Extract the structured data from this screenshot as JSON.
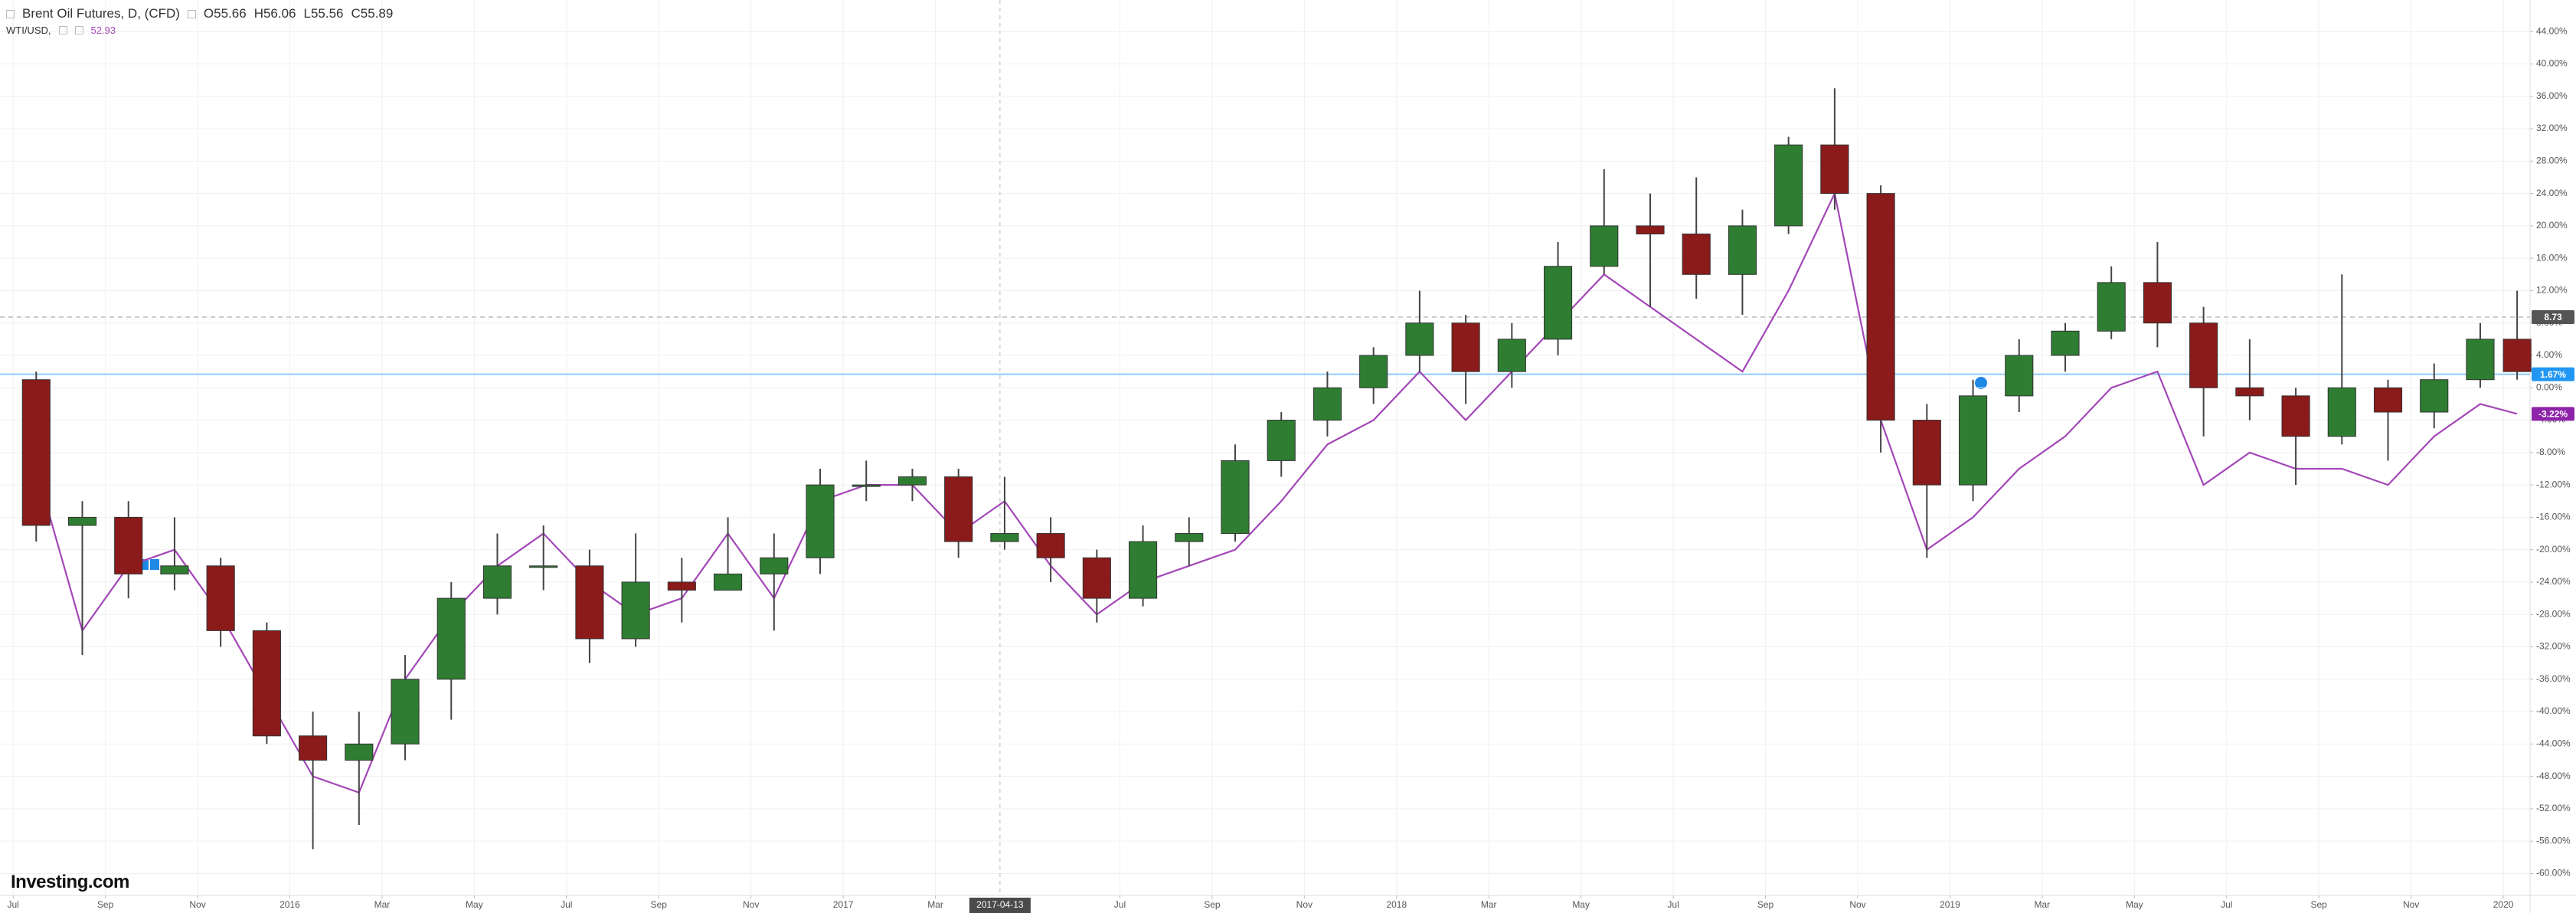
{
  "chart_data": {
    "type": "candlestick",
    "title": "Brent Oil Futures, D, (CFD)",
    "legend_values": [
      "O55.66",
      "H56.06",
      "L55.56",
      "C55.89"
    ],
    "compare_value": "52.93",
    "logo": "Investing.com",
    "up_color": "#2e7d32",
    "down_color": "#8b1a1a",
    "x": [
      0.5,
      1.5,
      2.5,
      3.5,
      4.5,
      5.5,
      6.5,
      7.5,
      8.5,
      9.5,
      10.5,
      11.5,
      12.5,
      13.5,
      14.5,
      15.5,
      16.5,
      17.5,
      18.5,
      19.5,
      20.5,
      21.5,
      22.5,
      23.5,
      24.5,
      25.5,
      26.5,
      27.5,
      28.5,
      29.5,
      30.5,
      31.5,
      32.5,
      33.5,
      34.5,
      35.5,
      36.5,
      37.5,
      38.5,
      39.5,
      40.5,
      41.5,
      42.5,
      43.5,
      44.5,
      45.5,
      46.5,
      47.5,
      48.5,
      49.5,
      50.5,
      51.5,
      52.5,
      53.5,
      54.3
    ],
    "open": [
      1,
      -17,
      -16,
      -23,
      -22,
      -30,
      -43,
      -46,
      -44,
      -36,
      -26,
      -22,
      -22,
      -31,
      -24,
      -25,
      -23,
      -21,
      -12,
      -12,
      -11,
      -19,
      -18,
      -21,
      -26,
      -19,
      -18,
      -9,
      -4,
      0,
      4,
      8,
      2,
      6,
      15,
      20,
      19,
      14,
      20,
      30,
      24,
      -4,
      -12,
      -1,
      4,
      7,
      13,
      8,
      0,
      -1,
      -6,
      0,
      -3,
      1,
      6
    ],
    "high": [
      2,
      -14,
      -14,
      -16,
      -21,
      -29,
      -40,
      -40,
      -33,
      -24,
      -18,
      -17,
      -20,
      -18,
      -21,
      -16,
      -18,
      -10,
      -9,
      -10,
      -10,
      -11,
      -16,
      -20,
      -17,
      -16,
      -7,
      -3,
      2,
      5,
      12,
      9,
      8,
      18,
      27,
      24,
      26,
      22,
      31,
      37,
      25,
      -2,
      1,
      6,
      8,
      15,
      18,
      10,
      6,
      0,
      14,
      1,
      3,
      8,
      12
    ],
    "low": [
      -19,
      -33,
      -26,
      -25,
      -32,
      -44,
      -57,
      -54,
      -46,
      -41,
      -28,
      -25,
      -34,
      -32,
      -29,
      -24,
      -30,
      -23,
      -14,
      -14,
      -21,
      -20,
      -24,
      -29,
      -27,
      -22,
      -19,
      -11,
      -6,
      -2,
      2,
      -2,
      0,
      4,
      14,
      10,
      11,
      9,
      19,
      22,
      -8,
      -21,
      -14,
      -3,
      2,
      6,
      5,
      -6,
      -4,
      -12,
      -7,
      -9,
      -5,
      0,
      1
    ],
    "close": [
      -17,
      -16,
      -23,
      -22,
      -30,
      -43,
      -46,
      -44,
      -36,
      -26,
      -22,
      -22,
      -31,
      -24,
      -25,
      -23,
      -21,
      -12,
      -12,
      -11,
      -19,
      -18,
      -21,
      -26,
      -19,
      -18,
      -9,
      -4,
      0,
      4,
      8,
      2,
      6,
      15,
      20,
      19,
      14,
      20,
      30,
      24,
      -4,
      -12,
      -1,
      4,
      7,
      13,
      8,
      0,
      -1,
      -6,
      0,
      -3,
      1,
      6,
      2
    ],
    "series": [
      {
        "name": "WTI/USD,",
        "color": "#a347b8",
        "values": [
          -10,
          -30,
          -22,
          -20,
          -28,
          -38,
          -48,
          -50,
          -36,
          -28,
          -22,
          -18,
          -24,
          -28,
          -26,
          -18,
          -26,
          -14,
          -12,
          -12,
          -18,
          -14,
          -22,
          -28,
          -24,
          -22,
          -20,
          -14,
          -7,
          -4,
          2,
          -4,
          2,
          8,
          14,
          10,
          6,
          2,
          12,
          24,
          -4,
          -20,
          -16,
          -10,
          -6,
          0,
          2,
          -12,
          -8,
          -10,
          -10,
          -12,
          -6,
          -2,
          -3.22
        ]
      }
    ],
    "xlim": [
      -0.285,
      54.58
    ],
    "ylim": [
      -62.7,
      47.9
    ],
    "xticks": [
      {
        "value": 0,
        "label": "Jul"
      },
      {
        "value": 2,
        "label": "Sep"
      },
      {
        "value": 4,
        "label": "Nov"
      },
      {
        "value": 6,
        "label": "2016"
      },
      {
        "value": 8,
        "label": "Mar"
      },
      {
        "value": 10,
        "label": "May"
      },
      {
        "value": 12,
        "label": "Jul"
      },
      {
        "value": 14,
        "label": "Sep"
      },
      {
        "value": 16,
        "label": "Nov"
      },
      {
        "value": 18,
        "label": "2017"
      },
      {
        "value": 20,
        "label": "Mar"
      },
      {
        "value": 24,
        "label": "Jul"
      },
      {
        "value": 26,
        "label": "Sep"
      },
      {
        "value": 28,
        "label": "Nov"
      },
      {
        "value": 30,
        "label": "2018"
      },
      {
        "value": 32,
        "label": "Mar"
      },
      {
        "value": 34,
        "label": "May"
      },
      {
        "value": 36,
        "label": "Jul"
      },
      {
        "value": 38,
        "label": "Sep"
      },
      {
        "value": 40,
        "label": "Nov"
      },
      {
        "value": 42,
        "label": "2019"
      },
      {
        "value": 44,
        "label": "Mar"
      },
      {
        "value": 46,
        "label": "May"
      },
      {
        "value": 48,
        "label": "Jul"
      },
      {
        "value": 50,
        "label": "Sep"
      },
      {
        "value": 52,
        "label": "Nov"
      },
      {
        "value": 54,
        "label": "2020"
      }
    ],
    "yticks": [
      {
        "value": -60,
        "label": "-60.00%"
      },
      {
        "value": -56,
        "label": "-56.00%"
      },
      {
        "value": -52,
        "label": "-52.00%"
      },
      {
        "value": -48,
        "label": "-48.00%"
      },
      {
        "value": -44,
        "label": "-44.00%"
      },
      {
        "value": -40,
        "label": "-40.00%"
      },
      {
        "value": -36,
        "label": "-36.00%"
      },
      {
        "value": -32,
        "label": "-32.00%"
      },
      {
        "value": -28,
        "label": "-28.00%"
      },
      {
        "value": -24,
        "label": "-24.00%"
      },
      {
        "value": -20,
        "label": "-20.00%"
      },
      {
        "value": -16,
        "label": "-16.00%"
      },
      {
        "value": -12,
        "label": "-12.00%"
      },
      {
        "value": -8,
        "label": "-8.00%"
      },
      {
        "value": -4,
        "label": "-4.00%"
      },
      {
        "value": 0,
        "label": "0.00%"
      },
      {
        "value": 4,
        "label": "4.00%"
      },
      {
        "value": 8,
        "label": "8.00%"
      },
      {
        "value": 12,
        "label": "12.00%"
      },
      {
        "value": 16,
        "label": "16.00%"
      },
      {
        "value": 20,
        "label": "20.00%"
      },
      {
        "value": 24,
        "label": "24.00%"
      },
      {
        "value": 28,
        "label": "28.00%"
      },
      {
        "value": 32,
        "label": "32.00%"
      },
      {
        "value": 36,
        "label": "36.00%"
      },
      {
        "value": 40,
        "label": "40.00%"
      },
      {
        "value": 44,
        "label": "44.00%"
      }
    ],
    "crosshair_x": {
      "value": 21.4,
      "label": "2017-04-13"
    },
    "price_tags": [
      {
        "value": 8.73,
        "label": "8.73",
        "color": "#555555",
        "line": "dashed"
      },
      {
        "value": 1.67,
        "label": "1.67%",
        "color": "#2196f3",
        "line": "solid"
      },
      {
        "value": -3.22,
        "label": "-3.22%",
        "color": "#8e24aa",
        "line": "none"
      }
    ],
    "grid": true
  }
}
